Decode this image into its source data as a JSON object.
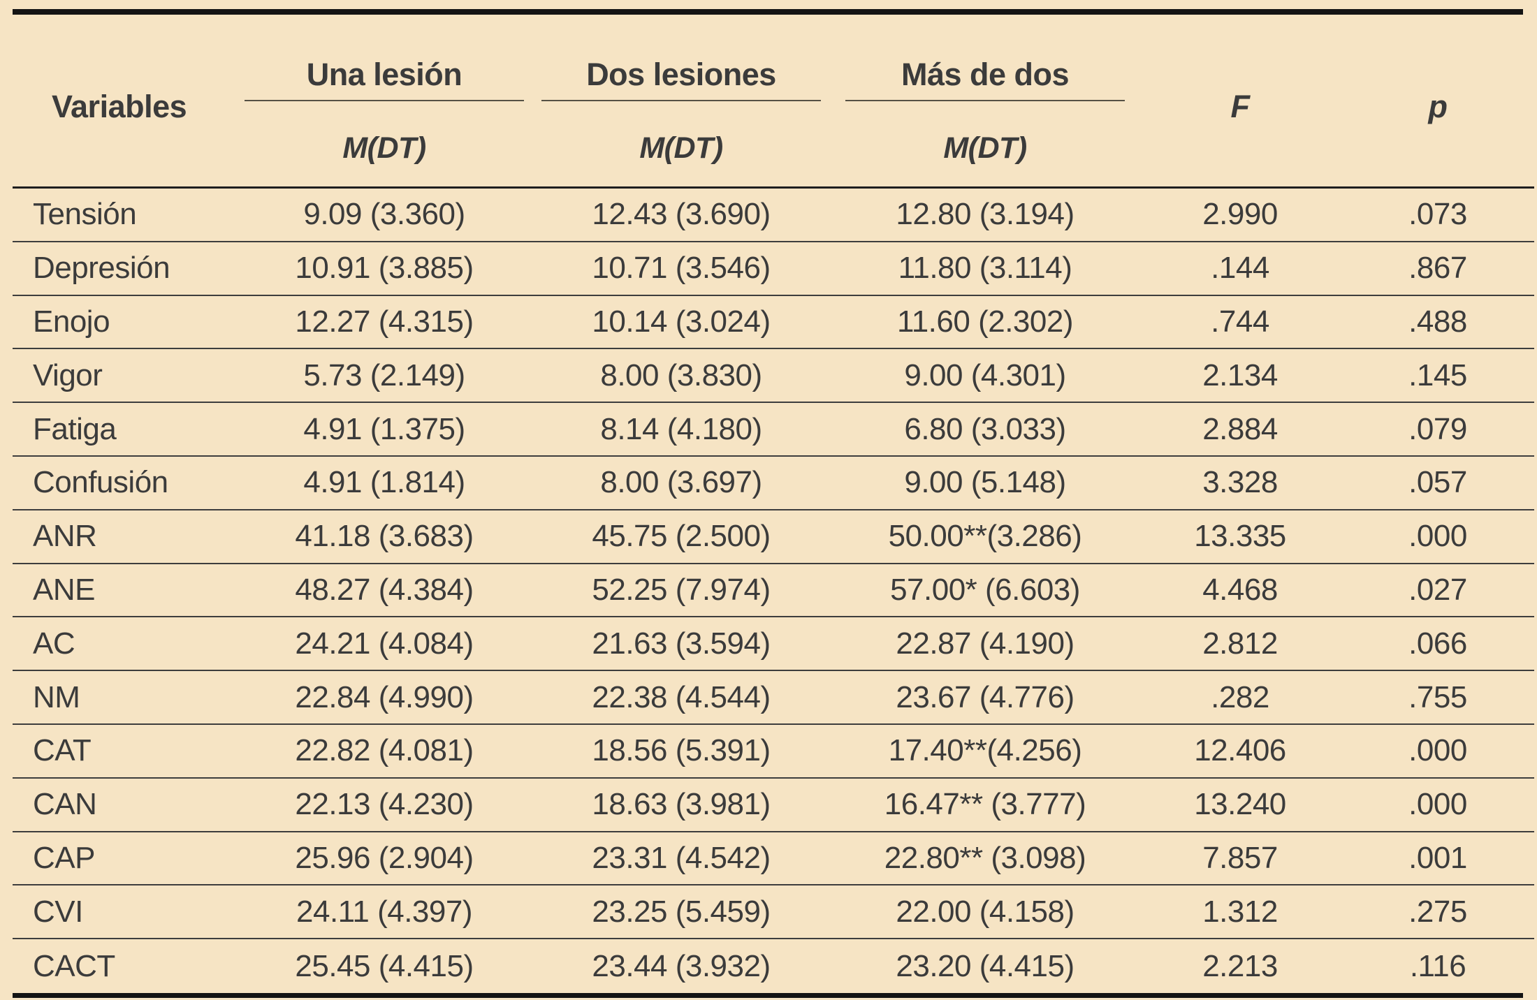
{
  "table": {
    "header": {
      "variables_label": "Variables",
      "groups": [
        {
          "label": "Una lesión",
          "sub": "M(DT)"
        },
        {
          "label": "Dos lesiones",
          "sub": "M(DT)"
        },
        {
          "label": "Más de dos",
          "sub": "M(DT)"
        }
      ],
      "f_label": "F",
      "p_label": "p"
    },
    "rows": [
      {
        "variable": "Tensión",
        "una_lesion": "9.09 (3.360)",
        "dos_lesiones": "12.43 (3.690)",
        "mas_de_dos": "12.80 (3.194)",
        "f": "2.990",
        "p": ".073"
      },
      {
        "variable": "Depresión",
        "una_lesion": "10.91 (3.885)",
        "dos_lesiones": "10.71 (3.546)",
        "mas_de_dos": "11.80 (3.114)",
        "f": ".144",
        "p": ".867"
      },
      {
        "variable": "Enojo",
        "una_lesion": "12.27 (4.315)",
        "dos_lesiones": "10.14 (3.024)",
        "mas_de_dos": "11.60 (2.302)",
        "f": ".744",
        "p": ".488"
      },
      {
        "variable": "Vigor",
        "una_lesion": "5.73 (2.149)",
        "dos_lesiones": "8.00 (3.830)",
        "mas_de_dos": "9.00 (4.301)",
        "f": "2.134",
        "p": ".145"
      },
      {
        "variable": "Fatiga",
        "una_lesion": "4.91 (1.375)",
        "dos_lesiones": "8.14 (4.180)",
        "mas_de_dos": "6.80 (3.033)",
        "f": "2.884",
        "p": ".079"
      },
      {
        "variable": "Confusión",
        "una_lesion": "4.91 (1.814)",
        "dos_lesiones": "8.00 (3.697)",
        "mas_de_dos": "9.00 (5.148)",
        "f": "3.328",
        "p": ".057"
      },
      {
        "variable": "ANR",
        "una_lesion": "41.18 (3.683)",
        "dos_lesiones": "45.75 (2.500)",
        "mas_de_dos": "50.00**(3.286)",
        "f": "13.335",
        "p": ".000"
      },
      {
        "variable": "ANE",
        "una_lesion": "48.27 (4.384)",
        "dos_lesiones": "52.25 (7.974)",
        "mas_de_dos": "57.00* (6.603)",
        "f": "4.468",
        "p": ".027"
      },
      {
        "variable": "AC",
        "una_lesion": "24.21 (4.084)",
        "dos_lesiones": "21.63 (3.594)",
        "mas_de_dos": "22.87 (4.190)",
        "f": "2.812",
        "p": ".066"
      },
      {
        "variable": "NM",
        "una_lesion": "22.84 (4.990)",
        "dos_lesiones": "22.38 (4.544)",
        "mas_de_dos": "23.67 (4.776)",
        "f": ".282",
        "p": ".755"
      },
      {
        "variable": "CAT",
        "una_lesion": "22.82 (4.081)",
        "dos_lesiones": "18.56 (5.391)",
        "mas_de_dos": "17.40**(4.256)",
        "f": "12.406",
        "p": ".000"
      },
      {
        "variable": "CAN",
        "una_lesion": "22.13 (4.230)",
        "dos_lesiones": "18.63 (3.981)",
        "mas_de_dos": "16.47** (3.777)",
        "f": "13.240",
        "p": ".000"
      },
      {
        "variable": "CAP",
        "una_lesion": "25.96 (2.904)",
        "dos_lesiones": "23.31 (4.542)",
        "mas_de_dos": "22.80** (3.098)",
        "f": "7.857",
        "p": ".001"
      },
      {
        "variable": "CVI",
        "una_lesion": "24.11 (4.397)",
        "dos_lesiones": "23.25 (5.459)",
        "mas_de_dos": "22.00 (4.158)",
        "f": "1.312",
        "p": ".275"
      },
      {
        "variable": "CACT",
        "una_lesion": "25.45 (4.415)",
        "dos_lesiones": "23.44 (3.932)",
        "mas_de_dos": "23.20 (4.415)",
        "f": "2.213",
        "p": ".116"
      }
    ]
  },
  "colors": {
    "background": "#F6E4C4",
    "text": "#3B3B3B",
    "rule_heavy": "#141414",
    "rule_row": "#3D3D3D",
    "rule_group": "#565145"
  }
}
